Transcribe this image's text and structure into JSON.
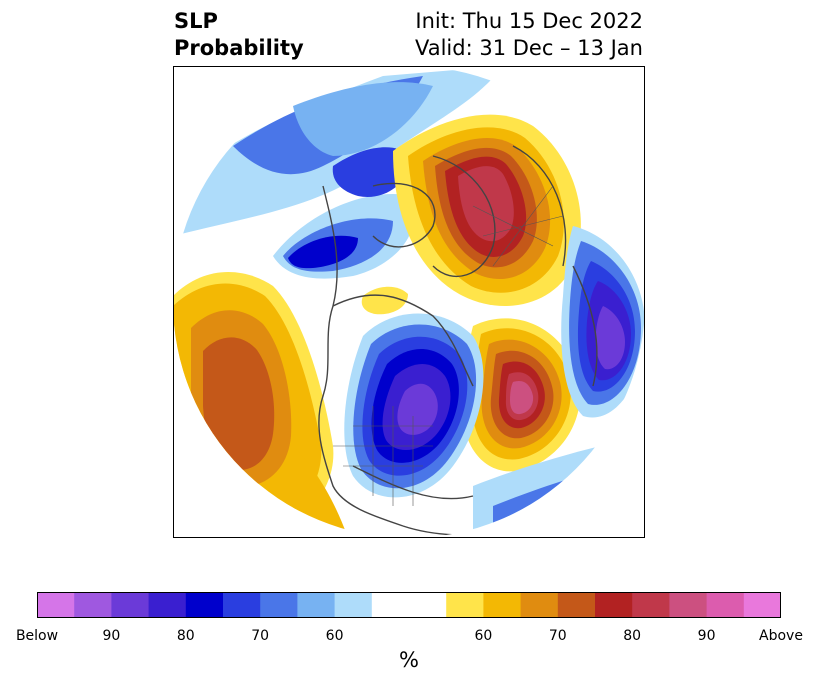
{
  "header": {
    "title_line1": "SLP",
    "title_line2": "Probability",
    "init_label": "Init: Thu 15 Dec 2022",
    "valid_label": "Valid: 31 Dec – 13 Jan"
  },
  "colorbar": {
    "units": "%",
    "bins": [
      {
        "color": "#d575e8"
      },
      {
        "color": "#9f58e0"
      },
      {
        "color": "#6b3ad8"
      },
      {
        "color": "#3a1fd0"
      },
      {
        "color": "#0000cc"
      },
      {
        "color": "#2a3ee0"
      },
      {
        "color": "#4a76e8"
      },
      {
        "color": "#77b2f2"
      },
      {
        "color": "#aedcfa"
      },
      {
        "color": "#ffffff"
      },
      {
        "color": "#ffffff"
      },
      {
        "color": "#ffe44a"
      },
      {
        "color": "#f3b804"
      },
      {
        "color": "#e08c10"
      },
      {
        "color": "#c45819"
      },
      {
        "color": "#b22222"
      },
      {
        "color": "#c0384a"
      },
      {
        "color": "#cc5080"
      },
      {
        "color": "#dc5cae"
      },
      {
        "color": "#e978dc"
      }
    ],
    "ticks": [
      {
        "label": "Below",
        "bin": 0
      },
      {
        "label": "90",
        "bin": 2
      },
      {
        "label": "80",
        "bin": 4
      },
      {
        "label": "70",
        "bin": 6
      },
      {
        "label": "60",
        "bin": 8
      },
      {
        "label": "60",
        "bin": 12
      },
      {
        "label": "70",
        "bin": 14
      },
      {
        "label": "80",
        "bin": 16
      },
      {
        "label": "90",
        "bin": 18
      },
      {
        "label": "Above",
        "bin": 20
      }
    ]
  },
  "map": {
    "ocean_color": "#ffffff",
    "border_color": "#444444"
  }
}
